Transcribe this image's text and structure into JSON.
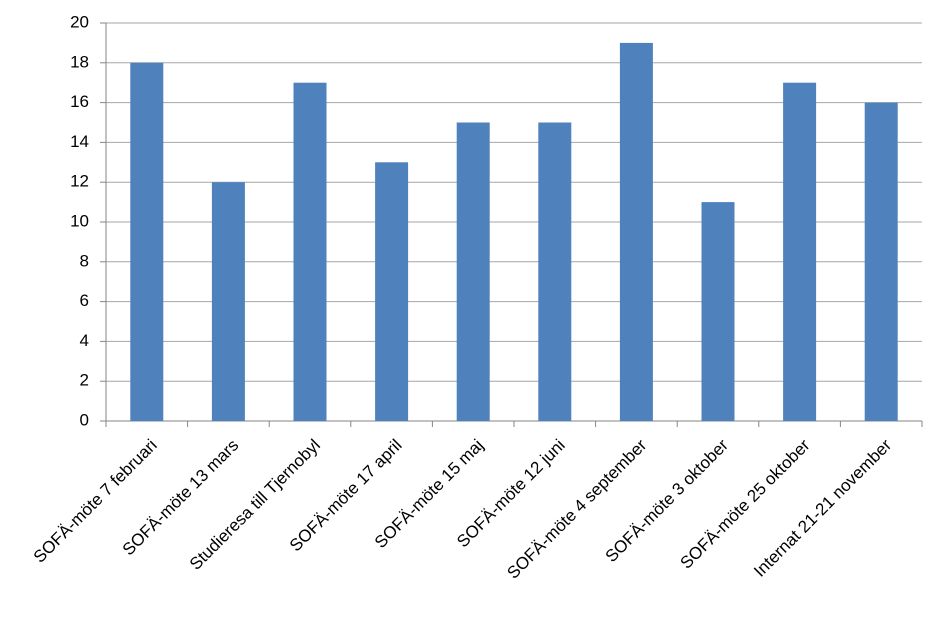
{
  "chart_data": {
    "type": "bar",
    "categories": [
      "SOFÄ-möte 7 februari",
      "SOFÄ-möte 13 mars",
      "Studieresa till Tjernobyl",
      "SOFÄ-möte 17 april",
      "SOFÄ-möte 15 maj",
      "SOFÄ-möte 12 juni",
      "SOFÄ-möte 4 september",
      "SOFÄ-möte 3 oktober",
      "SOFÄ-möte 25 oktober",
      "Internat 21-21 november"
    ],
    "values": [
      18,
      12,
      17,
      13,
      15,
      15,
      19,
      11,
      17,
      16
    ],
    "color": "#4f81bd",
    "ylim": [
      0,
      20
    ],
    "yticks": [
      0,
      2,
      4,
      6,
      8,
      10,
      12,
      14,
      16,
      18,
      20
    ],
    "grid": true
  }
}
